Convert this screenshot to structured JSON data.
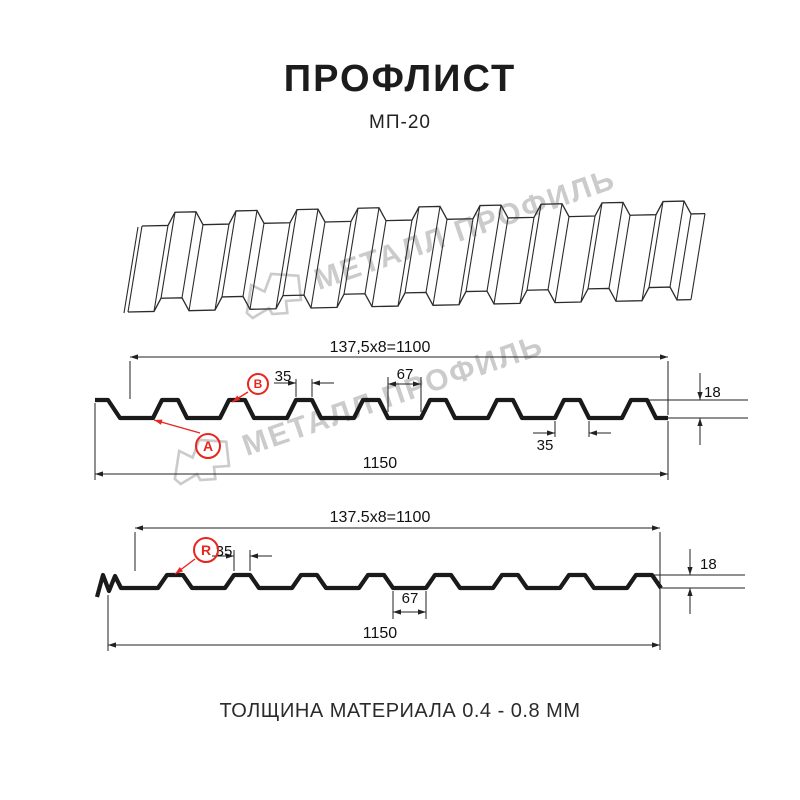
{
  "header": {
    "title": "ПРОФЛИСТ",
    "subtitle": "МП-20"
  },
  "footer": {
    "text": "ТОЛЩИНА МАТЕРИАЛА 0.4 - 0.8 ММ"
  },
  "watermark": {
    "text": "МЕТАЛЛ ПРОФИЛЬ"
  },
  "colors": {
    "red": "#e8251e",
    "line": "#1a1a1a",
    "dim_line": "#222222",
    "watermark_gray": "#cbcbcb",
    "sheet_line": "#2b2b2b"
  },
  "section1": {
    "dim_top_width": "137,5x8=1100",
    "dim_rib_crest": "35",
    "dim_valley": "67",
    "dim_height": "18",
    "dim_rib_base": "35",
    "dim_total_width": "1150",
    "marker_a": "A",
    "marker_b": "B"
  },
  "section2": {
    "dim_top_width": "137.5x8=1100",
    "dim_rib_crest": "35",
    "dim_valley": "67",
    "dim_height": "18",
    "dim_total_width": "1150",
    "marker_r": "R"
  }
}
